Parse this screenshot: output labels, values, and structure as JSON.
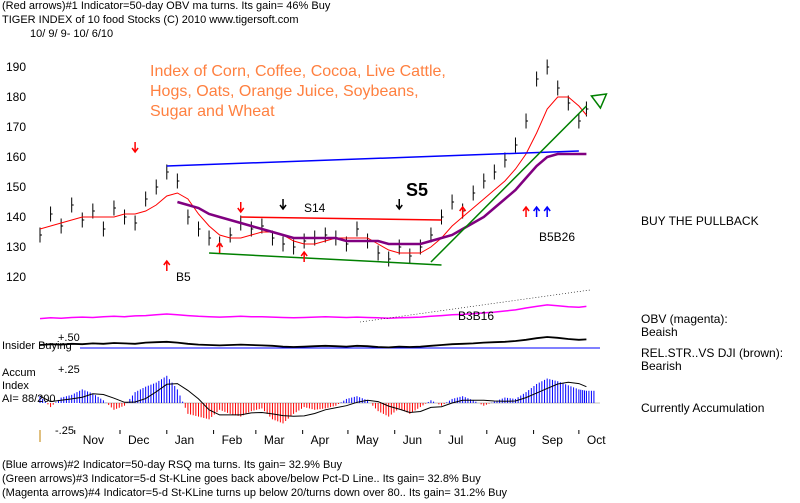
{
  "header": {
    "line1": "(Red arrows)#1 Indicator=50-day OBV ma turns.  Its gain= 46% Buy",
    "line2": "TIGER INDEX of  10 food Stocks  (C) 2010  www.tigersoft.com",
    "line3": "10/ 9/ 9- 10/ 6/10"
  },
  "footer": {
    "line1": "(Blue arrows)#2 Indicator=50-day RSQ ma turns.  Its gain= 32.9% Buy",
    "line2": "(Green arrows)#3 Indicator=5-d St-KLine goes back above/below Pct-D Line..  Its gain= 32.8% Buy",
    "line3": "(Magenta arrows)#4 Indicator=5-d St-KLine turns up below 20/turns down over 80..  Its gain= 31.2% Buy"
  },
  "annotation": {
    "lines": [
      "Index of Corn, Coffee, Cocoa, Live Cattle,",
      "Hogs, Oats, Orange Juice, Soybeans,",
      "Sugar and Wheat"
    ],
    "color": "#ff8040"
  },
  "right_panel": {
    "buy_note": "BUY THE PULLBACK",
    "obv_label": "OBV (magenta):",
    "obv_status": "Beaish",
    "relstr_label": "REL.STR..VS DJI (brown):",
    "relstr_status": "Bearish",
    "accum_status": "Currently Accumulation"
  },
  "labels": {
    "s5": "S5",
    "s14": "S14",
    "b5": "B5",
    "b5b26": "B5B26",
    "b3b16": "B3B16",
    "insider": "Insider Buying",
    "accum_title": "Accum",
    "accum_index": "Index",
    "ai": "AI= 88/200",
    "plus50": "+.50",
    "plus25": "+.25",
    "minus25": "-.25"
  },
  "chart_data": {
    "type": "line",
    "title": "TIGER INDEX of  10 food Stocks",
    "date_range": "10/ 9/ 9- 10/ 6/10",
    "y_ticks": [
      120,
      130,
      140,
      150,
      160,
      170,
      180,
      190
    ],
    "ylim": [
      115,
      195
    ],
    "x_months": [
      "Nov",
      "Dec",
      "Jan",
      "Feb",
      "Mar",
      "Apr",
      "May",
      "Jun",
      "Jul",
      "Aug",
      "Sep",
      "Oct"
    ],
    "x": [
      "2009-10-09",
      "2009-10-16",
      "2009-10-23",
      "2009-10-30",
      "2009-11-06",
      "2009-11-13",
      "2009-11-20",
      "2009-11-27",
      "2009-12-04",
      "2009-12-11",
      "2009-12-18",
      "2009-12-25",
      "2010-01-01",
      "2010-01-08",
      "2010-01-15",
      "2010-01-22",
      "2010-01-29",
      "2010-02-05",
      "2010-02-12",
      "2010-02-19",
      "2010-02-26",
      "2010-03-05",
      "2010-03-12",
      "2010-03-19",
      "2010-03-26",
      "2010-04-02",
      "2010-04-09",
      "2010-04-16",
      "2010-04-23",
      "2010-04-30",
      "2010-05-07",
      "2010-05-14",
      "2010-05-21",
      "2010-05-28",
      "2010-06-04",
      "2010-06-11",
      "2010-06-18",
      "2010-06-25",
      "2010-07-02",
      "2010-07-09",
      "2010-07-16",
      "2010-07-23",
      "2010-07-30",
      "2010-08-06",
      "2010-08-13",
      "2010-08-20",
      "2010-08-27",
      "2010-09-03",
      "2010-09-10",
      "2010-09-17",
      "2010-09-24",
      "2010-10-01",
      "2010-10-06"
    ],
    "series": [
      {
        "role": "price",
        "values": [
          134,
          141,
          137,
          144,
          139,
          142,
          136,
          143,
          140,
          138,
          146,
          150,
          155,
          152,
          140,
          136,
          133,
          131,
          134,
          138,
          136,
          137,
          133,
          131,
          130,
          132,
          133,
          134,
          133,
          131,
          136,
          132,
          128,
          126,
          130,
          127,
          130,
          134,
          140,
          145,
          142,
          148,
          152,
          155,
          159,
          164,
          172,
          186,
          190,
          183,
          178,
          172,
          176
        ]
      },
      {
        "role": "short moving average",
        "color": "#ff0000",
        "values": [
          136,
          137,
          138,
          139,
          140,
          140,
          140,
          140,
          141,
          141,
          142,
          144,
          147,
          148,
          146,
          141,
          137,
          134,
          133,
          133,
          134,
          135,
          135,
          134,
          132,
          131,
          131,
          132,
          133,
          133,
          133,
          133,
          131,
          129,
          128,
          128,
          128,
          130,
          133,
          137,
          140,
          143,
          146,
          149,
          152,
          156,
          161,
          168,
          176,
          180,
          180,
          177,
          174
        ]
      },
      {
        "role": "long moving average",
        "color": "#800080",
        "values": [
          null,
          null,
          null,
          null,
          null,
          null,
          null,
          null,
          null,
          null,
          null,
          null,
          null,
          145,
          144,
          143,
          141,
          140,
          139,
          138,
          137,
          136,
          135,
          134,
          133,
          133,
          133,
          133,
          133,
          132,
          132,
          132,
          132,
          131,
          131,
          131,
          131,
          132,
          133,
          134,
          136,
          138,
          140,
          143,
          146,
          149,
          153,
          157,
          160,
          161,
          161,
          161,
          161
        ]
      }
    ],
    "trendlines": [
      {
        "color": "#0000ff",
        "from": [
          "2010-01-01",
          157
        ],
        "to": [
          "2010-10-01",
          162
        ]
      },
      {
        "color": "#ff0000",
        "from": [
          "2010-02-19",
          140
        ],
        "to": [
          "2010-07-02",
          139
        ]
      },
      {
        "color": "#008000",
        "from": [
          "2010-01-29",
          128
        ],
        "to": [
          "2010-07-02",
          124
        ]
      },
      {
        "color": "#008000",
        "from": [
          "2010-06-25",
          125
        ],
        "to": [
          "2010-10-06",
          177
        ]
      }
    ],
    "obv_values": [
      0.3,
      0.32,
      0.31,
      0.33,
      0.34,
      0.33,
      0.35,
      0.36,
      0.35,
      0.37,
      0.38,
      0.4,
      0.42,
      0.4,
      0.38,
      0.36,
      0.35,
      0.34,
      0.35,
      0.36,
      0.35,
      0.35,
      0.34,
      0.33,
      0.32,
      0.33,
      0.34,
      0.35,
      0.34,
      0.33,
      0.34,
      0.33,
      0.32,
      0.31,
      0.32,
      0.33,
      0.34,
      0.36,
      0.38,
      0.4,
      0.41,
      0.43,
      0.45,
      0.47,
      0.5,
      0.53,
      0.58,
      0.62,
      0.66,
      0.64,
      0.61,
      0.6,
      0.62
    ],
    "relstr_values": [
      0.5,
      0.52,
      0.51,
      0.53,
      0.52,
      0.54,
      0.53,
      0.55,
      0.54,
      0.53,
      0.56,
      0.57,
      0.58,
      0.56,
      0.53,
      0.51,
      0.5,
      0.49,
      0.5,
      0.51,
      0.5,
      0.49,
      0.48,
      0.46,
      0.45,
      0.46,
      0.47,
      0.48,
      0.47,
      0.46,
      0.48,
      0.47,
      0.45,
      0.44,
      0.46,
      0.45,
      0.46,
      0.48,
      0.5,
      0.52,
      0.53,
      0.54,
      0.56,
      0.57,
      0.58,
      0.6,
      0.63,
      0.67,
      0.7,
      0.68,
      0.65,
      0.63,
      0.64
    ],
    "accum_index": {
      "ylim": [
        -0.25,
        0.25
      ],
      "values": [
        0.05,
        -0.03,
        0.04,
        0.06,
        0.1,
        0.07,
        0.02,
        -0.05,
        -0.02,
        0.08,
        0.12,
        0.15,
        0.2,
        0.1,
        -0.08,
        -0.1,
        -0.12,
        -0.05,
        -0.08,
        -0.1,
        -0.06,
        -0.04,
        -0.12,
        -0.15,
        -0.08,
        -0.03,
        -0.05,
        -0.04,
        -0.02,
        0.03,
        0.05,
        0.02,
        -0.06,
        -0.1,
        -0.04,
        -0.08,
        -0.03,
        0.02,
        -0.02,
        0.03,
        0.05,
        0.02,
        -0.02,
        0.01,
        0.04,
        0.03,
        0.08,
        0.14,
        0.18,
        0.16,
        0.13,
        0.1,
        0.09
      ]
    }
  }
}
